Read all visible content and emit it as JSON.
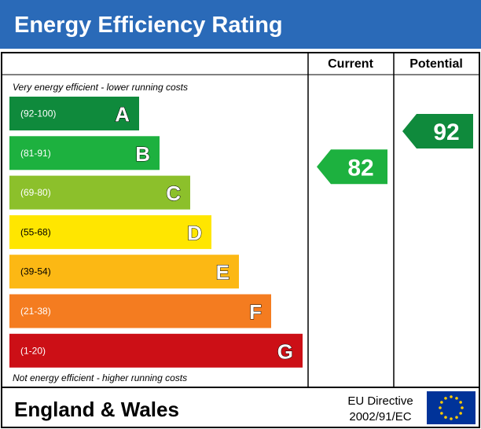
{
  "title": "Energy Efficiency Rating",
  "chart_data": {
    "type": "bar",
    "columns": {
      "current": "Current",
      "potential": "Potential"
    },
    "top_note": "Very energy efficient - lower running costs",
    "bottom_note": "Not energy efficient - higher running costs",
    "bands": [
      {
        "letter": "A",
        "range": "(92-100)",
        "color": "#0f8a3c"
      },
      {
        "letter": "B",
        "range": "(81-91)",
        "color": "#1db13f"
      },
      {
        "letter": "C",
        "range": "(69-80)",
        "color": "#8cc02b"
      },
      {
        "letter": "D",
        "range": "(55-68)",
        "color": "#ffe600"
      },
      {
        "letter": "E",
        "range": "(39-54)",
        "color": "#fcb814"
      },
      {
        "letter": "F",
        "range": "(21-38)",
        "color": "#f47c20"
      },
      {
        "letter": "G",
        "range": "(1-20)",
        "color": "#cc0f16"
      }
    ],
    "current": {
      "value": 82,
      "band": "B",
      "color": "#1db13f"
    },
    "potential": {
      "value": 92,
      "band": "A",
      "color": "#0f8a3c"
    }
  },
  "footer": {
    "region": "England & Wales",
    "directive_line1": "EU Directive",
    "directive_line2": "2002/91/EC"
  },
  "flag": {
    "field_color": "#003399",
    "star_color": "#ffcc00"
  }
}
